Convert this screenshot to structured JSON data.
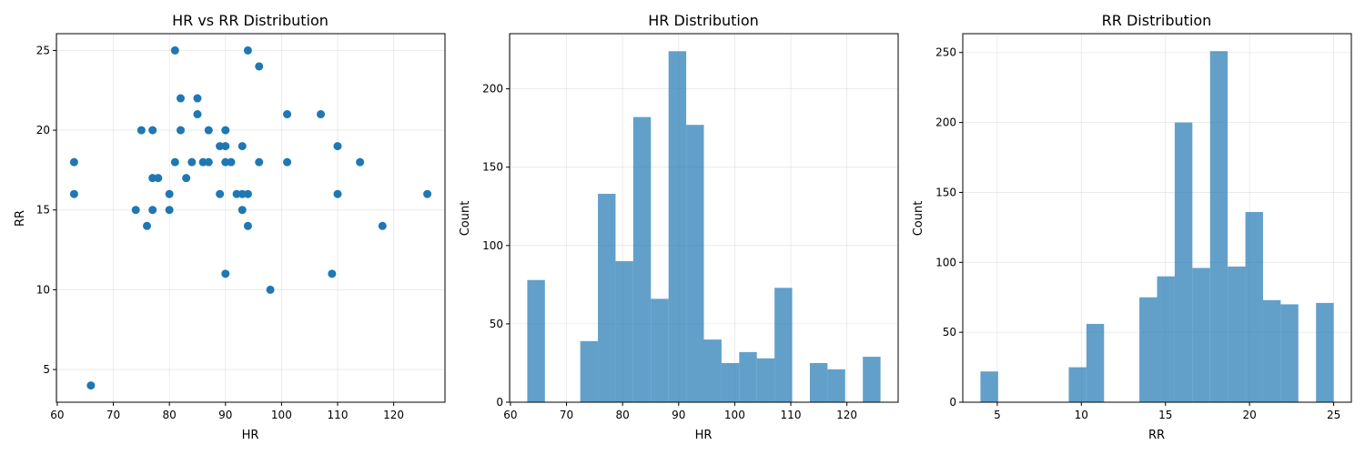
{
  "chart_data": [
    {
      "type": "scatter",
      "title": "HR vs RR Distribution",
      "xlabel": "HR",
      "ylabel": "RR",
      "xlim": [
        59.85,
        129.15
      ],
      "ylim": [
        2.95,
        26.05
      ],
      "xticks": [
        60,
        70,
        80,
        90,
        100,
        110,
        120
      ],
      "yticks": [
        5,
        10,
        15,
        20,
        25
      ],
      "grid": true,
      "color": "#1f77b4",
      "points": [
        {
          "x": 63,
          "y": 18
        },
        {
          "x": 63,
          "y": 16
        },
        {
          "x": 66,
          "y": 4
        },
        {
          "x": 74,
          "y": 15
        },
        {
          "x": 75,
          "y": 20
        },
        {
          "x": 76,
          "y": 14
        },
        {
          "x": 77,
          "y": 20
        },
        {
          "x": 77,
          "y": 17
        },
        {
          "x": 77,
          "y": 15
        },
        {
          "x": 78,
          "y": 17
        },
        {
          "x": 80,
          "y": 16
        },
        {
          "x": 80,
          "y": 15
        },
        {
          "x": 81,
          "y": 25
        },
        {
          "x": 81,
          "y": 18
        },
        {
          "x": 82,
          "y": 22
        },
        {
          "x": 82,
          "y": 20
        },
        {
          "x": 83,
          "y": 17
        },
        {
          "x": 84,
          "y": 18
        },
        {
          "x": 85,
          "y": 22
        },
        {
          "x": 85,
          "y": 21
        },
        {
          "x": 86,
          "y": 18
        },
        {
          "x": 87,
          "y": 20
        },
        {
          "x": 87,
          "y": 18
        },
        {
          "x": 89,
          "y": 19
        },
        {
          "x": 89,
          "y": 16
        },
        {
          "x": 90,
          "y": 20
        },
        {
          "x": 90,
          "y": 19
        },
        {
          "x": 90,
          "y": 18
        },
        {
          "x": 90,
          "y": 11
        },
        {
          "x": 91,
          "y": 18
        },
        {
          "x": 92,
          "y": 16
        },
        {
          "x": 93,
          "y": 19
        },
        {
          "x": 93,
          "y": 16
        },
        {
          "x": 93,
          "y": 15
        },
        {
          "x": 94,
          "y": 25
        },
        {
          "x": 94,
          "y": 16
        },
        {
          "x": 94,
          "y": 14
        },
        {
          "x": 96,
          "y": 24
        },
        {
          "x": 96,
          "y": 18
        },
        {
          "x": 98,
          "y": 10
        },
        {
          "x": 101,
          "y": 21
        },
        {
          "x": 101,
          "y": 18
        },
        {
          "x": 107,
          "y": 21
        },
        {
          "x": 109,
          "y": 11
        },
        {
          "x": 110,
          "y": 19
        },
        {
          "x": 110,
          "y": 16
        },
        {
          "x": 114,
          "y": 18
        },
        {
          "x": 118,
          "y": 14
        },
        {
          "x": 126,
          "y": 16
        }
      ]
    },
    {
      "type": "bar",
      "title": "HR Distribution",
      "xlabel": "HR",
      "ylabel": "Count",
      "xlim": [
        59.85,
        129.15
      ],
      "ylim": [
        0,
        235.2
      ],
      "xticks": [
        60,
        70,
        80,
        90,
        100,
        110,
        120
      ],
      "yticks": [
        0,
        50,
        100,
        150,
        200
      ],
      "grid": true,
      "color": "#1f77b4",
      "bin_edges": [
        63,
        66.15,
        69.3,
        72.45,
        75.6,
        78.75,
        81.9,
        85.05,
        88.2,
        91.35,
        94.5,
        97.65,
        100.8,
        103.95,
        107.1,
        110.25,
        113.4,
        116.55,
        119.7,
        122.85,
        126
      ],
      "values": [
        78,
        0,
        0,
        39,
        133,
        90,
        182,
        66,
        224,
        177,
        40,
        25,
        32,
        28,
        73,
        0,
        25,
        21,
        0,
        29
      ]
    },
    {
      "type": "bar",
      "title": "RR Distribution",
      "xlabel": "RR",
      "ylabel": "Count",
      "xlim": [
        2.95,
        26.05
      ],
      "ylim": [
        0,
        263.5
      ],
      "xticks": [
        5,
        10,
        15,
        20,
        25
      ],
      "yticks": [
        0,
        50,
        100,
        150,
        200,
        250
      ],
      "grid": true,
      "color": "#1f77b4",
      "bin_edges": [
        4,
        5.05,
        6.1,
        7.15,
        8.2,
        9.25,
        10.3,
        11.35,
        12.4,
        13.45,
        14.5,
        15.55,
        16.6,
        17.65,
        18.7,
        19.75,
        20.8,
        21.85,
        22.9,
        23.95,
        25
      ],
      "values": [
        22,
        0,
        0,
        0,
        0,
        25,
        56,
        0,
        0,
        75,
        90,
        200,
        96,
        251,
        97,
        136,
        73,
        70,
        0,
        71
      ]
    }
  ]
}
